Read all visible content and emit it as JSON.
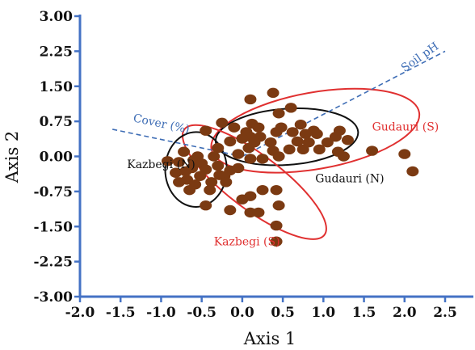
{
  "chart_data": {
    "type": "scatter",
    "xlabel": "Axis 1",
    "ylabel": "Axis 2",
    "xlim": [
      -2.0,
      2.5
    ],
    "ylim": [
      -3.0,
      3.0
    ],
    "x_ticks": [
      "-2.0",
      "-1.5",
      "-1.0",
      "-0.5",
      "0.0",
      "0.5",
      "1.0",
      "1.5",
      "2.0",
      "2.5"
    ],
    "y_ticks": [
      "3.00",
      "2.25",
      "1.50",
      "0.75",
      "0.00",
      "-0.75",
      "-1.50",
      "-2.25",
      "-3.00"
    ],
    "grid": false,
    "colors": {
      "points": "#7b3a12",
      "axis": "#4472c4",
      "vector": "#3e6db5",
      "north": "#111111",
      "south": "#e03030"
    },
    "points": [
      [
        0.38,
        1.36
      ],
      [
        0.1,
        1.22
      ],
      [
        0.6,
        1.04
      ],
      [
        0.45,
        0.92
      ],
      [
        -0.25,
        0.72
      ],
      [
        -0.1,
        0.62
      ],
      [
        0.12,
        0.7
      ],
      [
        0.2,
        0.62
      ],
      [
        0.48,
        0.62
      ],
      [
        0.72,
        0.68
      ],
      [
        0.88,
        0.55
      ],
      [
        1.15,
        0.42
      ],
      [
        1.2,
        0.55
      ],
      [
        -0.45,
        0.55
      ],
      [
        0.05,
        0.52
      ],
      [
        0.1,
        0.42
      ],
      [
        0.22,
        0.42
      ],
      [
        0.42,
        0.52
      ],
      [
        0.62,
        0.52
      ],
      [
        0.78,
        0.48
      ],
      [
        0.92,
        0.48
      ],
      [
        1.05,
        0.3
      ],
      [
        -0.15,
        0.32
      ],
      [
        0.0,
        0.38
      ],
      [
        0.15,
        0.3
      ],
      [
        0.35,
        0.3
      ],
      [
        0.68,
        0.32
      ],
      [
        0.82,
        0.3
      ],
      [
        1.3,
        0.35
      ],
      [
        -0.3,
        0.18
      ],
      [
        0.08,
        0.18
      ],
      [
        0.38,
        0.12
      ],
      [
        0.58,
        0.15
      ],
      [
        0.75,
        0.15
      ],
      [
        0.95,
        0.15
      ],
      [
        1.18,
        0.1
      ],
      [
        1.6,
        0.12
      ],
      [
        2.0,
        0.05
      ],
      [
        -0.05,
        0.05
      ],
      [
        0.1,
        -0.05
      ],
      [
        0.25,
        -0.05
      ],
      [
        0.45,
        0.0
      ],
      [
        1.25,
        0.0
      ],
      [
        -0.35,
        0.0
      ],
      [
        -0.55,
        0.0
      ],
      [
        -0.72,
        0.1
      ],
      [
        -0.6,
        -0.08
      ],
      [
        -0.78,
        -0.12
      ],
      [
        -0.5,
        -0.15
      ],
      [
        -0.92,
        -0.1
      ],
      [
        -0.3,
        -0.2
      ],
      [
        -0.62,
        -0.25
      ],
      [
        -0.45,
        -0.28
      ],
      [
        -0.7,
        -0.32
      ],
      [
        -0.82,
        -0.35
      ],
      [
        -0.15,
        -0.3
      ],
      [
        -0.05,
        -0.25
      ],
      [
        -0.28,
        -0.4
      ],
      [
        -0.52,
        -0.42
      ],
      [
        -0.68,
        -0.5
      ],
      [
        -0.78,
        -0.55
      ],
      [
        -0.58,
        -0.6
      ],
      [
        -0.38,
        -0.55
      ],
      [
        -0.22,
        -0.42
      ],
      [
        -0.65,
        -0.72
      ],
      [
        -0.4,
        -0.72
      ],
      [
        -0.2,
        -0.55
      ],
      [
        2.1,
        -0.32
      ],
      [
        0.25,
        -0.72
      ],
      [
        0.42,
        -0.72
      ],
      [
        0.1,
        -0.85
      ],
      [
        0.0,
        -0.92
      ],
      [
        0.45,
        -1.05
      ],
      [
        -0.45,
        -1.05
      ],
      [
        -0.15,
        -1.15
      ],
      [
        0.1,
        -1.2
      ],
      [
        0.2,
        -1.2
      ],
      [
        0.42,
        -1.48
      ],
      [
        0.42,
        -1.82
      ]
    ],
    "ellipses": [
      {
        "label": "Gudauri (S)",
        "type": "south",
        "cx": 0.9,
        "cy": 0.55,
        "rx": 1.3,
        "ry": 0.82,
        "angle": -10
      },
      {
        "label": "Gudauri (N)",
        "type": "north",
        "cx": 0.55,
        "cy": 0.42,
        "rx": 0.88,
        "ry": 0.6,
        "angle": -4
      },
      {
        "label": "Kazbegi (S)",
        "type": "south",
        "cx": 0.15,
        "cy": -0.55,
        "rx": 1.08,
        "ry": 0.58,
        "angle": 37
      },
      {
        "label": "Kazbegi (N)",
        "type": "north",
        "cx": -0.57,
        "cy": -0.28,
        "rx": 0.38,
        "ry": 0.8,
        "angle": 0
      }
    ],
    "labels": [
      {
        "text": "Gudauri (S)",
        "x": 1.6,
        "y": 0.55,
        "type": "south"
      },
      {
        "text": "Gudauri (N)",
        "x": 0.9,
        "y": -0.55,
        "type": "north"
      },
      {
        "text": "Kazbegi (S)",
        "x": -0.35,
        "y": -1.9,
        "type": "south"
      },
      {
        "text": "Kazbegi (N)",
        "x": -1.42,
        "y": -0.25,
        "type": "north"
      }
    ],
    "vectors": [
      {
        "label": "Cover (%)",
        "x1": -1.6,
        "y1": 0.58,
        "x2": 0.0,
        "y2": 0.0,
        "label_x": -1.35,
        "label_y": 0.75
      },
      {
        "label": "Soil pH",
        "x1": 0.0,
        "y1": 0.0,
        "x2": 2.5,
        "y2": 2.25,
        "label_x": 2.0,
        "label_y": 1.8
      }
    ]
  }
}
